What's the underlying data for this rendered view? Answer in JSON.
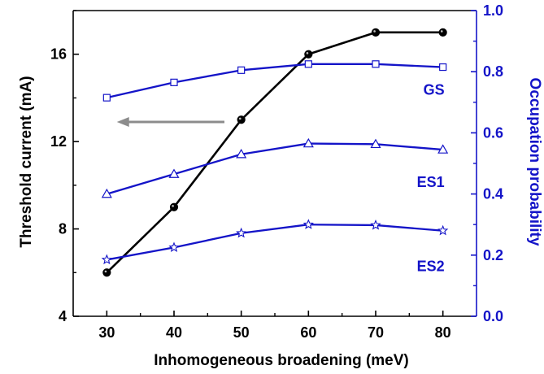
{
  "chart_data": {
    "type": "line",
    "xlabel": "Inhomogeneous broadening (meV)",
    "ylabel_left": "Threshold current (mA)",
    "ylabel_right": "Occupation probability",
    "x": [
      30,
      40,
      50,
      60,
      70,
      80
    ],
    "xlim": [
      25,
      85
    ],
    "xticks": [
      30,
      40,
      50,
      60,
      70,
      80
    ],
    "ylim_left": [
      4,
      18
    ],
    "yticks_left": [
      4,
      8,
      12,
      16
    ],
    "ylim_right": [
      0.0,
      1.0
    ],
    "yticks_right": [
      "0.0",
      "0.2",
      "0.4",
      "0.6",
      "0.8",
      "1.0"
    ],
    "grid": false,
    "series": [
      {
        "axis": "left",
        "color": "#000000",
        "marker": "filled-circle",
        "values": [
          6,
          9,
          13,
          16,
          17,
          17
        ]
      },
      {
        "name": "GS",
        "axis": "right",
        "color": "#1414c8",
        "marker": "open-square",
        "values": [
          0.715,
          0.765,
          0.805,
          0.825,
          0.825,
          0.815
        ]
      },
      {
        "name": "ES1",
        "axis": "right",
        "color": "#1414c8",
        "marker": "open-triangle",
        "values": [
          0.4,
          0.465,
          0.53,
          0.565,
          0.563,
          0.545
        ]
      },
      {
        "name": "ES2",
        "axis": "right",
        "color": "#1414c8",
        "marker": "open-star",
        "values": [
          0.185,
          0.225,
          0.272,
          0.3,
          0.298,
          0.28
        ]
      }
    ],
    "annotations": [
      {
        "type": "arrow",
        "direction": "left",
        "color": "#8c8c8c",
        "from": {
          "x": 47.5,
          "y_left": 12.9
        },
        "to": {
          "x": 31.5,
          "y_left": 12.9
        }
      }
    ]
  }
}
